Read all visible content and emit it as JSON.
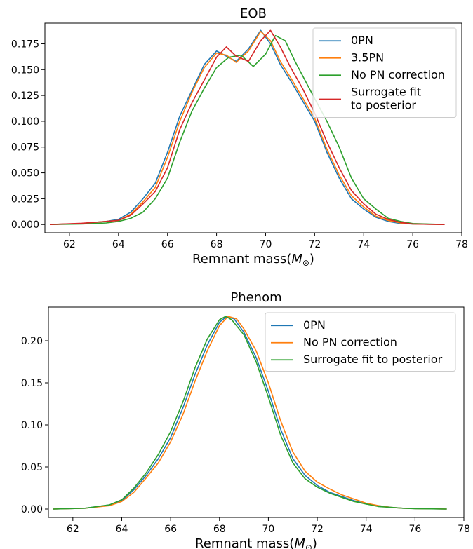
{
  "chart_data": [
    {
      "type": "line",
      "title": "EOB",
      "xlabel": "Remnant mass",
      "xlabel_symbol": "M",
      "xlabel_subscript": "⊙",
      "ylabel": "",
      "xlim": [
        61,
        78
      ],
      "ylim": [
        -0.008,
        0.195
      ],
      "xticks": [
        62,
        64,
        66,
        68,
        70,
        72,
        74,
        76,
        78
      ],
      "yticks": [
        0.0,
        0.025,
        0.05,
        0.075,
        0.1,
        0.125,
        0.15,
        0.175
      ],
      "ytick_labels": [
        "0.000",
        "0.025",
        "0.050",
        "0.075",
        "0.100",
        "0.125",
        "0.150",
        "0.175"
      ],
      "legend": "top-right",
      "grid": false,
      "series": [
        {
          "name": "0PN",
          "color": "#1f77b4",
          "x": [
            61.2,
            62.5,
            63.5,
            64.0,
            64.5,
            65.0,
            65.5,
            66.0,
            66.5,
            67.0,
            67.5,
            68.0,
            68.4,
            68.8,
            69.3,
            69.8,
            70.2,
            70.6,
            71.0,
            71.5,
            72.0,
            72.5,
            73.0,
            73.5,
            74.0,
            74.5,
            75.0,
            75.5,
            76.0,
            77.3
          ],
          "y": [
            0.0,
            0.001,
            0.003,
            0.005,
            0.012,
            0.025,
            0.04,
            0.07,
            0.105,
            0.13,
            0.155,
            0.168,
            0.163,
            0.158,
            0.17,
            0.188,
            0.175,
            0.155,
            0.14,
            0.12,
            0.1,
            0.07,
            0.045,
            0.025,
            0.015,
            0.007,
            0.003,
            0.001,
            0.0005,
            0.0
          ]
        },
        {
          "name": "3.5PN",
          "color": "#ff7f0e",
          "x": [
            61.2,
            62.5,
            63.5,
            64.0,
            64.5,
            65.0,
            65.5,
            66.0,
            66.5,
            67.0,
            67.5,
            68.0,
            68.4,
            68.8,
            69.3,
            69.8,
            70.2,
            70.6,
            71.0,
            71.5,
            72.0,
            72.5,
            73.0,
            73.5,
            74.0,
            74.5,
            75.0,
            75.5,
            76.0,
            77.3
          ],
          "y": [
            0.0,
            0.001,
            0.003,
            0.004,
            0.01,
            0.022,
            0.036,
            0.065,
            0.1,
            0.128,
            0.152,
            0.166,
            0.164,
            0.157,
            0.168,
            0.187,
            0.178,
            0.158,
            0.143,
            0.123,
            0.103,
            0.073,
            0.048,
            0.028,
            0.017,
            0.008,
            0.004,
            0.0015,
            0.0005,
            0.0
          ]
        },
        {
          "name": "No PN correction",
          "color": "#2ca02c",
          "x": [
            61.2,
            62.5,
            63.5,
            64.0,
            64.5,
            65.0,
            65.5,
            66.0,
            66.5,
            67.0,
            67.5,
            68.0,
            68.5,
            69.0,
            69.5,
            70.0,
            70.4,
            70.8,
            71.2,
            71.6,
            72.0,
            72.5,
            73.0,
            73.5,
            74.0,
            74.5,
            75.0,
            75.5,
            76.0,
            77.3
          ],
          "y": [
            0.0,
            0.0005,
            0.0015,
            0.003,
            0.006,
            0.012,
            0.025,
            0.045,
            0.08,
            0.11,
            0.132,
            0.152,
            0.162,
            0.164,
            0.153,
            0.165,
            0.183,
            0.178,
            0.158,
            0.14,
            0.122,
            0.1,
            0.075,
            0.045,
            0.025,
            0.015,
            0.006,
            0.003,
            0.001,
            0.0
          ]
        },
        {
          "name": "Surrogate fit\nto posterior",
          "color": "#d62728",
          "x": [
            61.2,
            62.5,
            63.5,
            64.0,
            64.5,
            65.0,
            65.5,
            66.0,
            66.5,
            67.0,
            67.5,
            68.0,
            68.4,
            68.8,
            69.3,
            69.8,
            70.2,
            70.6,
            71.0,
            71.5,
            72.0,
            72.5,
            73.0,
            73.5,
            74.0,
            74.5,
            75.0,
            75.5,
            76.0,
            77.3
          ],
          "y": [
            0.0,
            0.0012,
            0.003,
            0.004,
            0.009,
            0.02,
            0.032,
            0.055,
            0.092,
            0.118,
            0.14,
            0.162,
            0.172,
            0.163,
            0.158,
            0.178,
            0.188,
            0.172,
            0.153,
            0.132,
            0.108,
            0.08,
            0.055,
            0.033,
            0.02,
            0.01,
            0.005,
            0.002,
            0.0005,
            0.0
          ]
        }
      ]
    },
    {
      "type": "line",
      "title": "Phenom",
      "xlabel": "Remnant mass",
      "xlabel_symbol": "M",
      "xlabel_subscript": "⊙",
      "ylabel": "",
      "xlim": [
        61,
        78
      ],
      "ylim": [
        -0.01,
        0.24
      ],
      "xticks": [
        62,
        64,
        66,
        68,
        70,
        72,
        74,
        76,
        78
      ],
      "yticks": [
        0.0,
        0.05,
        0.1,
        0.15,
        0.2
      ],
      "ytick_labels": [
        "0.00",
        "0.05",
        "0.10",
        "0.15",
        "0.20"
      ],
      "legend": "top-right",
      "grid": false,
      "series": [
        {
          "name": "0PN",
          "color": "#1f77b4",
          "x": [
            61.2,
            62.5,
            63.5,
            64.0,
            64.5,
            65.0,
            65.5,
            66.0,
            66.5,
            67.0,
            67.5,
            68.0,
            68.3,
            68.6,
            69.0,
            69.5,
            70.0,
            70.5,
            71.0,
            71.5,
            72.0,
            72.5,
            73.0,
            73.5,
            74.0,
            74.5,
            75.0,
            75.5,
            76.0,
            77.3
          ],
          "y": [
            0.0,
            0.001,
            0.005,
            0.01,
            0.023,
            0.04,
            0.06,
            0.085,
            0.12,
            0.16,
            0.195,
            0.222,
            0.229,
            0.226,
            0.21,
            0.18,
            0.14,
            0.095,
            0.06,
            0.04,
            0.028,
            0.02,
            0.015,
            0.01,
            0.006,
            0.004,
            0.002,
            0.001,
            0.0006,
            0.0
          ]
        },
        {
          "name": "No PN correction",
          "color": "#ff7f0e",
          "x": [
            61.2,
            62.5,
            63.5,
            64.0,
            64.5,
            65.0,
            65.5,
            66.0,
            66.5,
            67.0,
            67.5,
            68.0,
            68.35,
            68.7,
            69.0,
            69.5,
            70.0,
            70.5,
            71.0,
            71.5,
            72.0,
            72.5,
            73.0,
            73.5,
            74.0,
            74.5,
            75.0,
            75.5,
            76.0,
            77.3
          ],
          "y": [
            0.0,
            0.001,
            0.004,
            0.009,
            0.02,
            0.037,
            0.055,
            0.08,
            0.112,
            0.152,
            0.188,
            0.218,
            0.229,
            0.226,
            0.214,
            0.188,
            0.15,
            0.105,
            0.068,
            0.045,
            0.032,
            0.024,
            0.017,
            0.012,
            0.007,
            0.004,
            0.002,
            0.001,
            0.0006,
            0.0
          ]
        },
        {
          "name": "Surrogate fit to posterior",
          "color": "#2ca02c",
          "x": [
            61.2,
            62.5,
            63.5,
            64.0,
            64.5,
            65.0,
            65.5,
            66.0,
            66.5,
            67.0,
            67.5,
            68.0,
            68.25,
            68.5,
            69.0,
            69.5,
            70.0,
            70.5,
            71.0,
            71.5,
            72.0,
            72.5,
            73.0,
            73.5,
            74.0,
            74.5,
            75.0,
            75.5,
            76.0,
            77.3
          ],
          "y": [
            0.0,
            0.001,
            0.005,
            0.011,
            0.025,
            0.043,
            0.065,
            0.092,
            0.127,
            0.168,
            0.202,
            0.225,
            0.229,
            0.225,
            0.207,
            0.175,
            0.133,
            0.088,
            0.055,
            0.036,
            0.026,
            0.019,
            0.014,
            0.009,
            0.006,
            0.003,
            0.002,
            0.001,
            0.0005,
            0.0
          ]
        }
      ]
    }
  ]
}
